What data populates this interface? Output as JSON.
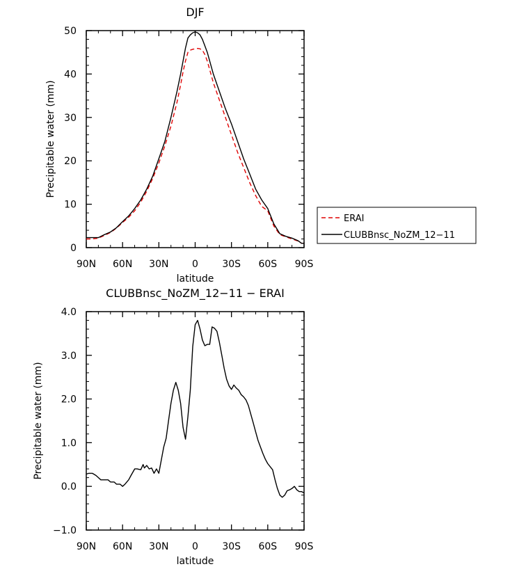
{
  "chart_data": [
    {
      "type": "line",
      "title": "DJF",
      "xlabel": "latitude",
      "ylabel": "Precipitable water (mm)",
      "xlim": [
        90,
        -90
      ],
      "ylim": [
        0,
        50
      ],
      "x_tick_values": [
        90,
        60,
        30,
        0,
        -30,
        -60,
        -90
      ],
      "x_tick_labels": [
        "90N",
        "60N",
        "30N",
        "0",
        "30S",
        "60S",
        "90S"
      ],
      "y_tick_values": [
        0,
        10,
        20,
        30,
        40,
        50
      ],
      "y_tick_labels": [
        "0",
        "10",
        "20",
        "30",
        "40",
        "50"
      ],
      "legend_position": "right",
      "series": [
        {
          "name": "ERAI",
          "color": "#e00000",
          "style": "dashed",
          "x": [
            90,
            85,
            80,
            75,
            70,
            65,
            60,
            55,
            50,
            45,
            40,
            35,
            30,
            25,
            20,
            15,
            12,
            10,
            8,
            6,
            4,
            2,
            0,
            -2,
            -4,
            -6,
            -8,
            -10,
            -12,
            -15,
            -20,
            -25,
            -30,
            -35,
            -40,
            -45,
            -50,
            -55,
            -60,
            -65,
            -70,
            -75,
            -80,
            -85,
            -88,
            -90
          ],
          "y": [
            2.0,
            2.0,
            2.2,
            2.8,
            3.5,
            4.5,
            5.8,
            7.0,
            8.5,
            10.5,
            13.0,
            16.0,
            19.5,
            23.5,
            28.0,
            33.5,
            37.5,
            40.5,
            43.0,
            45.0,
            45.5,
            45.7,
            45.8,
            45.9,
            45.8,
            45.5,
            44.5,
            43.0,
            41.0,
            38.0,
            34.0,
            30.0,
            26.0,
            22.0,
            18.5,
            15.0,
            12.0,
            9.5,
            8.5,
            5.0,
            3.0,
            2.5,
            2.0,
            1.5,
            1.0,
            1.0
          ]
        },
        {
          "name": "CLUBBnsc_NoZM_12-11",
          "color": "#000000",
          "style": "solid",
          "x": [
            90,
            85,
            80,
            75,
            70,
            65,
            60,
            55,
            50,
            45,
            40,
            35,
            30,
            25,
            20,
            15,
            12,
            10,
            8,
            6,
            4,
            2,
            0,
            -2,
            -4,
            -6,
            -8,
            -10,
            -12,
            -15,
            -20,
            -25,
            -30,
            -35,
            -40,
            -45,
            -50,
            -55,
            -60,
            -65,
            -70,
            -75,
            -80,
            -85,
            -88,
            -90
          ],
          "y": [
            2.3,
            2.3,
            2.3,
            3.0,
            3.6,
            4.6,
            6.0,
            7.3,
            9.0,
            11.0,
            13.5,
            16.5,
            20.5,
            24.5,
            30.0,
            36.0,
            40.0,
            43.0,
            46.0,
            48.3,
            49.0,
            49.5,
            49.7,
            49.5,
            49.0,
            48.0,
            46.5,
            45.0,
            43.0,
            40.0,
            36.0,
            32.0,
            28.5,
            24.5,
            20.5,
            17.0,
            13.5,
            11.0,
            9.0,
            5.5,
            3.2,
            2.6,
            2.2,
            1.6,
            1.0,
            1.0
          ]
        }
      ]
    },
    {
      "type": "line",
      "title": "CLUBBnsc_NoZM_12-11 - ERAI",
      "xlabel": "latitude",
      "ylabel": "Precipitable water (mm)",
      "xlim": [
        90,
        -90
      ],
      "ylim": [
        -1.0,
        4.0
      ],
      "x_tick_values": [
        90,
        60,
        30,
        0,
        -30,
        -60,
        -90
      ],
      "x_tick_labels": [
        "90N",
        "60N",
        "30N",
        "0",
        "30S",
        "60S",
        "90S"
      ],
      "y_tick_values": [
        -1.0,
        0.0,
        1.0,
        2.0,
        3.0,
        4.0
      ],
      "y_tick_labels": [
        "-1.0",
        "0.0",
        "1.0",
        "2.0",
        "3.0",
        "4.0"
      ],
      "series": [
        {
          "color": "#000000",
          "style": "solid",
          "x": [
            90,
            88,
            85,
            82,
            80,
            78,
            75,
            72,
            70,
            67,
            65,
            62,
            60,
            58,
            55,
            53,
            50,
            48,
            45,
            43,
            42,
            40,
            38,
            36,
            34,
            32,
            30,
            28,
            26,
            24,
            22,
            20,
            18,
            16,
            14,
            12,
            10,
            8,
            6,
            4,
            2,
            0,
            -2,
            -4,
            -6,
            -8,
            -10,
            -12,
            -14,
            -16,
            -18,
            -20,
            -22,
            -24,
            -26,
            -28,
            -30,
            -32,
            -34,
            -36,
            -38,
            -40,
            -42,
            -44,
            -46,
            -48,
            -50,
            -52,
            -54,
            -56,
            -58,
            -60,
            -62,
            -64,
            -66,
            -68,
            -70,
            -72,
            -74,
            -76,
            -78,
            -80,
            -82,
            -84,
            -86,
            -88,
            -90
          ],
          "y": [
            0.28,
            0.3,
            0.3,
            0.25,
            0.2,
            0.15,
            0.15,
            0.15,
            0.1,
            0.1,
            0.05,
            0.05,
            0.0,
            0.05,
            0.15,
            0.25,
            0.4,
            0.4,
            0.38,
            0.5,
            0.42,
            0.48,
            0.4,
            0.42,
            0.3,
            0.4,
            0.3,
            0.6,
            0.9,
            1.1,
            1.5,
            1.9,
            2.2,
            2.38,
            2.2,
            1.9,
            1.35,
            1.08,
            1.6,
            2.2,
            3.2,
            3.7,
            3.8,
            3.6,
            3.35,
            3.22,
            3.25,
            3.25,
            3.65,
            3.62,
            3.55,
            3.3,
            3.0,
            2.7,
            2.45,
            2.3,
            2.22,
            2.32,
            2.25,
            2.2,
            2.1,
            2.05,
            1.98,
            1.85,
            1.65,
            1.45,
            1.25,
            1.05,
            0.9,
            0.75,
            0.62,
            0.52,
            0.45,
            0.38,
            0.15,
            -0.05,
            -0.2,
            -0.25,
            -0.2,
            -0.1,
            -0.08,
            -0.05,
            0.0,
            -0.08,
            -0.12,
            -0.12,
            -0.15
          ]
        }
      ]
    }
  ]
}
